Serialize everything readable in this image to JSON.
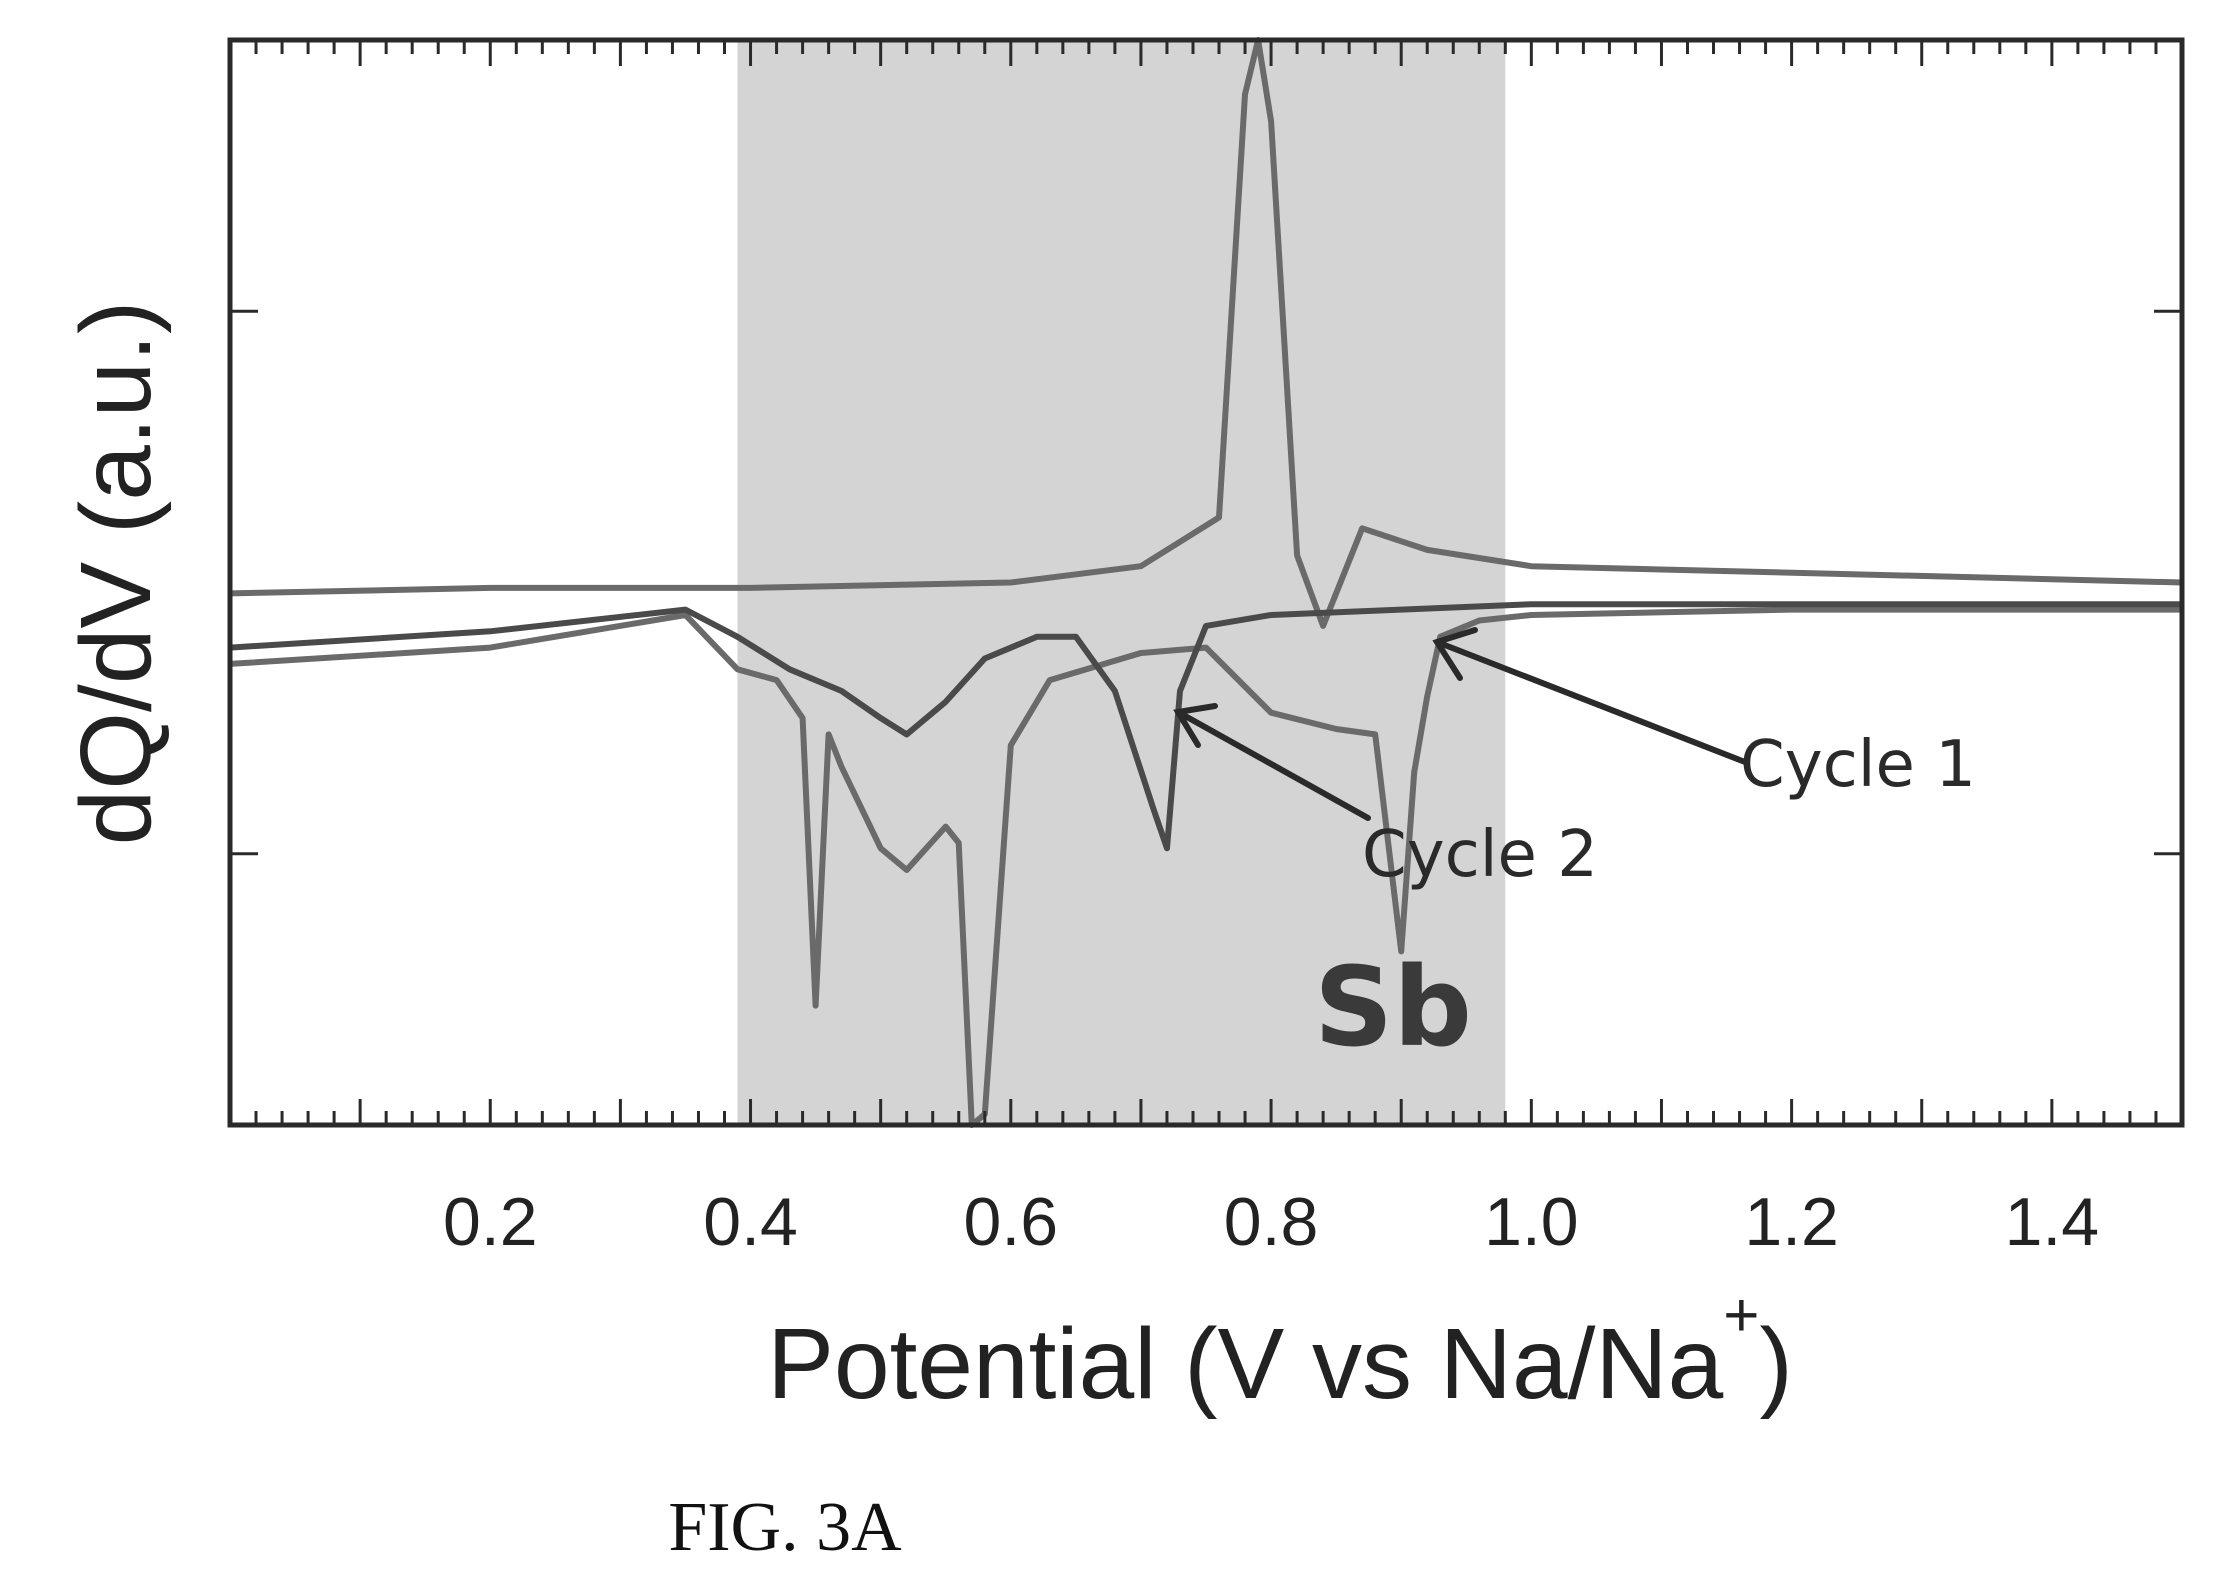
{
  "chart_data": {
    "type": "line",
    "title": "",
    "xlabel": "Potential (V vs Na/Na",
    "xlabel_superscript": "+",
    "xlabel_close": ")",
    "ylabel": "dQ/dV (a.u.)",
    "xlim": [
      0.0,
      1.5
    ],
    "ylim": [
      -1.0,
      1.0
    ],
    "x_ticks": [
      0.2,
      0.4,
      0.6,
      0.8,
      1.0,
      1.2,
      1.4
    ],
    "x_tick_labels": [
      "0.2",
      "0.4",
      "0.6",
      "0.8",
      "1.0",
      "1.2",
      "1.4"
    ],
    "y_tick_labels_shown": false,
    "grid": false,
    "legend": "none",
    "shaded_region": {
      "x": [
        0.39,
        0.98
      ],
      "color": "#d4d4d4"
    },
    "region_label": "Sb",
    "annotations": [
      {
        "text": "Cycle 1",
        "points_to": [
          0.92,
          -0.22
        ]
      },
      {
        "text": "Cycle 2",
        "points_to": [
          0.73,
          -0.5
        ]
      }
    ],
    "series": [
      {
        "name": "Cycle 1",
        "color": "#6a6a6a",
        "segments": [
          {
            "x": [
              0.0,
              0.2,
              0.35,
              0.39,
              0.42,
              0.44,
              0.45,
              0.46,
              0.47,
              0.5,
              0.52,
              0.55,
              0.56,
              0.57,
              0.58,
              0.6,
              0.63,
              0.7,
              0.75,
              0.8,
              0.85,
              0.88,
              0.9,
              0.91,
              0.92,
              0.93,
              0.96,
              1.0,
              1.2,
              1.5
            ],
            "y": [
              -0.15,
              -0.12,
              -0.06,
              -0.16,
              -0.18,
              -0.25,
              -0.78,
              -0.28,
              -0.34,
              -0.49,
              -0.53,
              -0.45,
              -0.48,
              -1.0,
              -0.98,
              -0.3,
              -0.18,
              -0.13,
              -0.12,
              -0.24,
              -0.27,
              -0.28,
              -0.68,
              -0.35,
              -0.21,
              -0.1,
              -0.07,
              -0.06,
              -0.05,
              -0.05
            ]
          },
          {
            "x": [
              0.0,
              0.2,
              0.4,
              0.6,
              0.7,
              0.76,
              0.78,
              0.79,
              0.8,
              0.82,
              0.84,
              0.87,
              0.92,
              1.0,
              1.5
            ],
            "y": [
              -0.02,
              -0.01,
              -0.01,
              0.0,
              0.03,
              0.12,
              0.9,
              1.0,
              0.85,
              0.05,
              -0.08,
              0.1,
              0.06,
              0.03,
              0.0
            ]
          }
        ]
      },
      {
        "name": "Cycle 2",
        "color": "#4a4a4a",
        "segments": [
          {
            "x": [
              0.0,
              0.2,
              0.35,
              0.39,
              0.43,
              0.47,
              0.5,
              0.52,
              0.55,
              0.58,
              0.62,
              0.65,
              0.68,
              0.71,
              0.72,
              0.73,
              0.75,
              0.8,
              0.9,
              1.0,
              1.2,
              1.5
            ],
            "y": [
              -0.12,
              -0.09,
              -0.05,
              -0.1,
              -0.16,
              -0.2,
              -0.25,
              -0.28,
              -0.22,
              -0.14,
              -0.1,
              -0.1,
              -0.2,
              -0.42,
              -0.49,
              -0.2,
              -0.08,
              -0.06,
              -0.05,
              -0.04,
              -0.04,
              -0.04
            ]
          }
        ]
      }
    ]
  },
  "caption": "FIG. 3A"
}
